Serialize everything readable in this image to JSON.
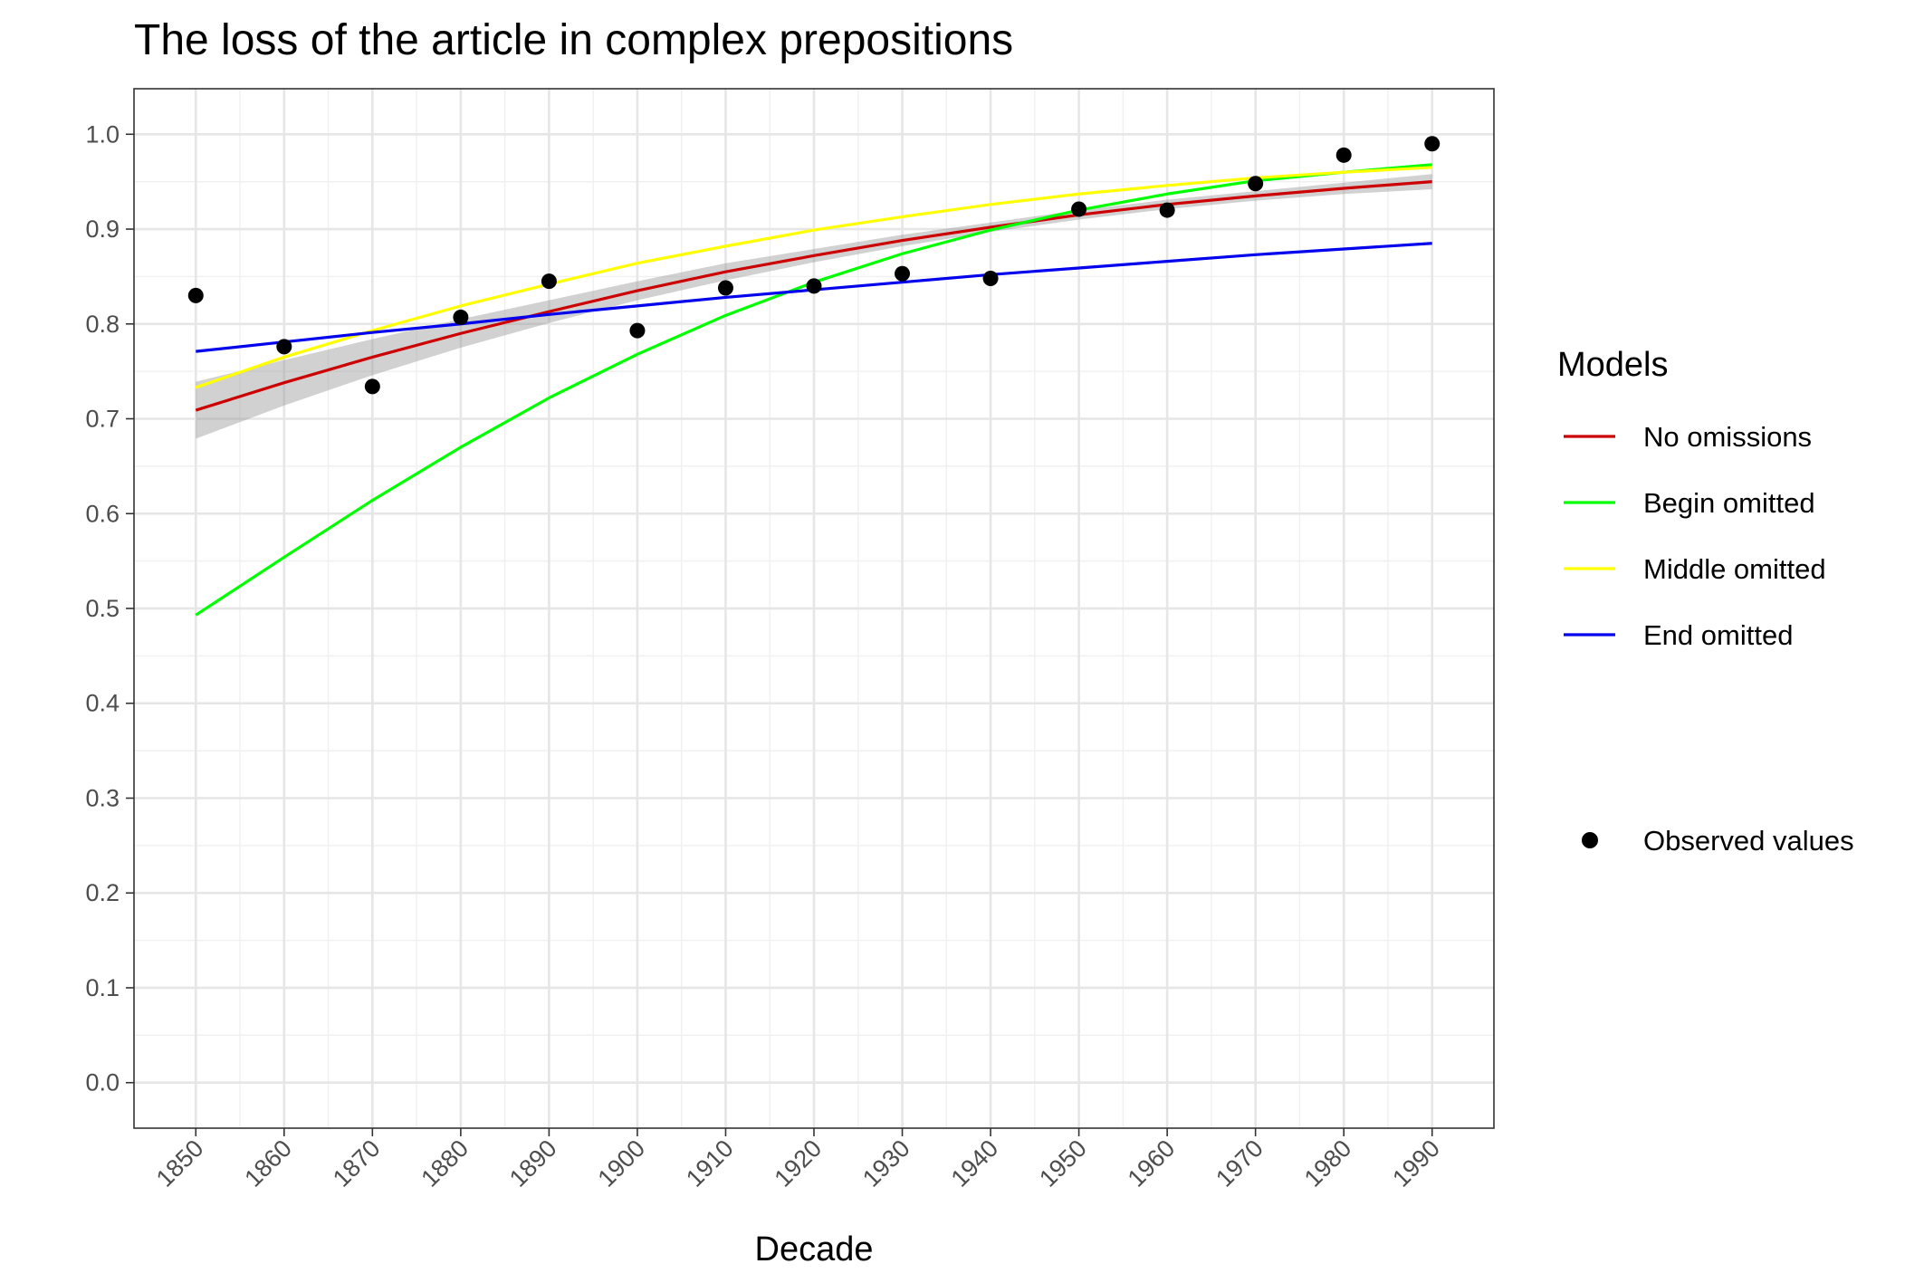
{
  "chart_data": {
    "type": "line",
    "title": "The loss of the article in complex prepositions",
    "xlabel": "Decade",
    "ylabel": "",
    "x": [
      1850,
      1860,
      1870,
      1880,
      1890,
      1900,
      1910,
      1920,
      1930,
      1940,
      1950,
      1960,
      1970,
      1980,
      1990
    ],
    "x_ticks": [
      "1850",
      "1860",
      "1870",
      "1880",
      "1890",
      "1900",
      "1910",
      "1920",
      "1930",
      "1940",
      "1950",
      "1960",
      "1970",
      "1980",
      "1990"
    ],
    "y_ticks": [
      "0.0",
      "0.1",
      "0.2",
      "0.3",
      "0.4",
      "0.5",
      "0.6",
      "0.7",
      "0.8",
      "0.9",
      "1.0"
    ],
    "xlim": [
      1843,
      1997
    ],
    "ylim": [
      -0.048,
      1.048
    ],
    "grid": true,
    "legend_placement": "right",
    "legend_title": "Models",
    "series": [
      {
        "name": "No omissions",
        "color": "#cc0000",
        "values": [
          0.709,
          0.738,
          0.765,
          0.79,
          0.813,
          0.835,
          0.855,
          0.872,
          0.888,
          0.902,
          0.915,
          0.926,
          0.935,
          0.943,
          0.95
        ],
        "band_lower": [
          0.679,
          0.714,
          0.746,
          0.775,
          0.801,
          0.825,
          0.846,
          0.865,
          0.882,
          0.897,
          0.91,
          0.921,
          0.93,
          0.937,
          0.942
        ],
        "band_upper": [
          0.739,
          0.762,
          0.784,
          0.805,
          0.825,
          0.845,
          0.864,
          0.879,
          0.894,
          0.907,
          0.92,
          0.931,
          0.94,
          0.949,
          0.958
        ]
      },
      {
        "name": "Begin omitted",
        "color": "#00ff00",
        "values": [
          0.493,
          0.554,
          0.614,
          0.67,
          0.722,
          0.768,
          0.809,
          0.844,
          0.874,
          0.899,
          0.92,
          0.937,
          0.951,
          0.96,
          0.968
        ]
      },
      {
        "name": "Middle omitted",
        "color": "#ffff00",
        "values": [
          0.733,
          0.765,
          0.793,
          0.819,
          0.842,
          0.864,
          0.882,
          0.899,
          0.913,
          0.926,
          0.937,
          0.946,
          0.954,
          0.96,
          0.965
        ]
      },
      {
        "name": "End omitted",
        "color": "#0000ee",
        "values": [
          0.771,
          0.781,
          0.791,
          0.8,
          0.81,
          0.819,
          0.828,
          0.836,
          0.844,
          0.852,
          0.859,
          0.866,
          0.873,
          0.879,
          0.885
        ]
      }
    ],
    "observed": {
      "name": "Observed values",
      "color": "#000000",
      "values": [
        0.83,
        0.776,
        0.734,
        0.807,
        0.845,
        0.793,
        0.838,
        0.84,
        0.853,
        0.848,
        0.921,
        0.92,
        0.948,
        0.978,
        0.99
      ]
    }
  }
}
